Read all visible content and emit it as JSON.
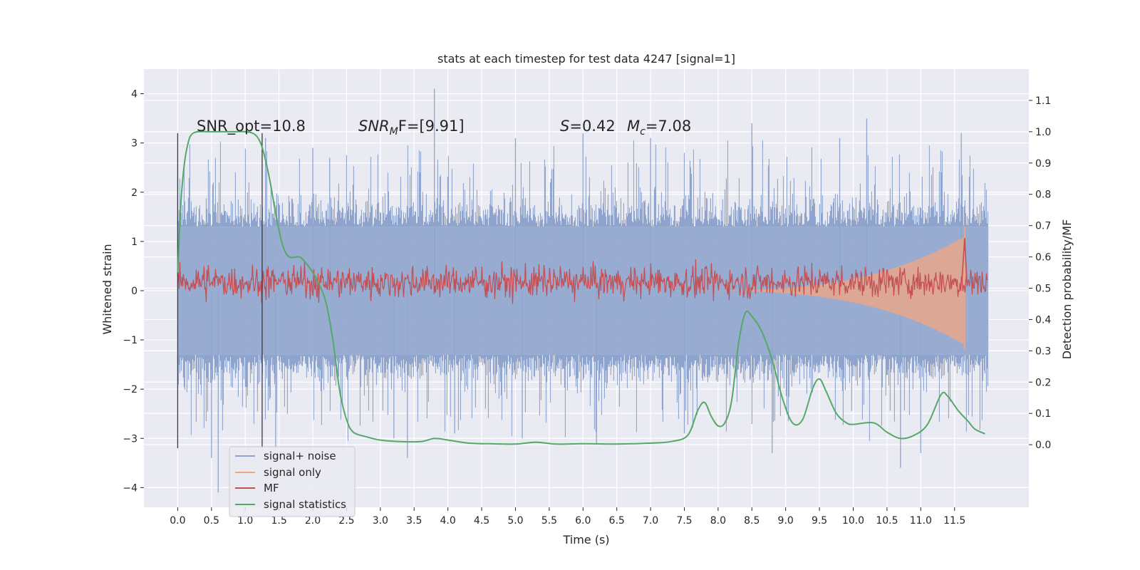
{
  "chart_data": {
    "type": "line",
    "title": "stats at each timestep for test data 4247 [signal=1]",
    "xlabel": "Time (s)",
    "ylabel": "Whitened strain",
    "y2label": "Detection probability/MF",
    "xlim": [
      -0.5,
      12.6
    ],
    "ylim": [
      -4.4,
      4.5
    ],
    "y2lim": [
      -0.2,
      1.2
    ],
    "x_ticks": [
      0.0,
      0.5,
      1.0,
      1.5,
      2.0,
      2.5,
      3.0,
      3.5,
      4.0,
      4.5,
      5.0,
      5.5,
      6.0,
      6.5,
      7.0,
      7.5,
      8.0,
      8.5,
      9.0,
      9.5,
      10.0,
      10.5,
      11.0,
      11.5
    ],
    "x_tick_labels": [
      "0.0",
      "0.5",
      "1.0",
      "1.5",
      "2.0",
      "2.5",
      "3.0",
      "3.5",
      "4.0",
      "4.5",
      "5.0",
      "5.5",
      "6.0",
      "6.5",
      "7.0",
      "7.5",
      "8.0",
      "8.5",
      "9.0",
      "9.5",
      "10.0",
      "10.5",
      "11.0",
      "11.5"
    ],
    "y_ticks": [
      4,
      3,
      2,
      1,
      0,
      -1,
      -2,
      -3,
      -4
    ],
    "y_tick_labels": [
      "4",
      "3",
      "2",
      "1",
      "0",
      "−1",
      "−2",
      "−3",
      "−4"
    ],
    "y2_ticks": [
      1.1,
      1.0,
      0.9,
      0.8,
      0.7,
      0.6,
      0.5,
      0.4,
      0.3,
      0.2,
      0.1,
      0.0
    ],
    "y2_tick_labels": [
      "1.1",
      "1.0",
      "0.9",
      "0.8",
      "0.7",
      "0.6",
      "0.5",
      "0.4",
      "0.3",
      "0.2",
      "0.1",
      "0.0"
    ],
    "grid": true,
    "legend_position": "lower-left",
    "annotations": {
      "snr_opt": "SNR_opt=10.8",
      "snr_mf_sym": "SNR",
      "snr_mf_sub": "M",
      "snr_mf_rest": "F=[9.91]",
      "s_sym": "S",
      "s_rest": "=0.42",
      "mc_sym": "M",
      "mc_sub": "c",
      "mc_rest": "=7.08"
    },
    "vlines": [
      {
        "x": 0.0,
        "y_range": [
          -3.2,
          3.2
        ]
      },
      {
        "x": 1.25,
        "y_range": [
          -3.2,
          3.2
        ]
      }
    ],
    "series": [
      {
        "name": "signal+ noise",
        "axis": "left",
        "color": "#8fa4cc",
        "x_range": [
          0.0,
          12.0
        ],
        "envelope_typical": 1.3,
        "peaks": [
          [
            0.0,
            2.3
          ],
          [
            0.5,
            -3.4
          ],
          [
            0.6,
            -4.1
          ],
          [
            1.3,
            3.1
          ],
          [
            1.45,
            -3.2
          ],
          [
            2.0,
            2.9
          ],
          [
            2.25,
            2.7
          ],
          [
            3.2,
            -3.0
          ],
          [
            3.4,
            -3.4
          ],
          [
            3.8,
            4.1
          ],
          [
            4.1,
            -2.9
          ],
          [
            5.0,
            3.1
          ],
          [
            5.1,
            -3.0
          ],
          [
            6.0,
            3.2
          ],
          [
            6.2,
            -3.1
          ],
          [
            7.0,
            3.1
          ],
          [
            7.5,
            -2.9
          ],
          [
            8.5,
            3.4
          ],
          [
            8.8,
            -3.3
          ],
          [
            9.8,
            3.1
          ],
          [
            10.2,
            3.5
          ],
          [
            10.7,
            -3.6
          ],
          [
            11.0,
            -3.3
          ],
          [
            11.6,
            3.2
          ]
        ]
      },
      {
        "name": "signal only",
        "axis": "left",
        "color": "#e8a68a",
        "x_range": [
          7.5,
          11.65
        ],
        "amp_end": 1.1
      },
      {
        "name": "MF",
        "axis": "right",
        "color": "#c44e52",
        "baseline": 0.52,
        "noise": 0.025,
        "peak": [
          11.65,
          0.66
        ]
      },
      {
        "name": "signal statistics",
        "axis": "right",
        "color": "#55a868",
        "x": [
          0.0,
          0.05,
          0.1,
          0.15,
          0.2,
          0.3,
          0.5,
          0.8,
          1.0,
          1.15,
          1.25,
          1.35,
          1.45,
          1.55,
          1.65,
          1.8,
          1.9,
          2.0,
          2.1,
          2.2,
          2.3,
          2.4,
          2.5,
          2.6,
          2.8,
          3.0,
          3.3,
          3.6,
          3.8,
          4.0,
          4.3,
          4.6,
          5.0,
          5.3,
          5.6,
          6.0,
          6.5,
          7.0,
          7.3,
          7.55,
          7.7,
          7.8,
          7.9,
          8.0,
          8.1,
          8.2,
          8.3,
          8.4,
          8.5,
          8.65,
          8.8,
          8.95,
          9.1,
          9.25,
          9.4,
          9.5,
          9.6,
          9.75,
          9.9,
          10.0,
          10.3,
          10.5,
          10.7,
          10.9,
          11.1,
          11.3,
          11.4,
          11.55,
          11.7,
          11.8,
          11.95
        ],
        "values": [
          0.55,
          0.78,
          0.9,
          0.96,
          0.99,
          1.0,
          1.0,
          1.0,
          1.0,
          0.99,
          0.95,
          0.86,
          0.74,
          0.64,
          0.6,
          0.6,
          0.58,
          0.55,
          0.51,
          0.45,
          0.33,
          0.17,
          0.08,
          0.04,
          0.025,
          0.015,
          0.01,
          0.01,
          0.02,
          0.015,
          0.005,
          0.003,
          0.002,
          0.008,
          0.002,
          0.003,
          0.002,
          0.005,
          0.01,
          0.03,
          0.11,
          0.135,
          0.09,
          0.06,
          0.07,
          0.14,
          0.32,
          0.42,
          0.41,
          0.36,
          0.27,
          0.15,
          0.07,
          0.08,
          0.18,
          0.21,
          0.17,
          0.1,
          0.07,
          0.065,
          0.07,
          0.04,
          0.02,
          0.03,
          0.065,
          0.16,
          0.155,
          0.11,
          0.075,
          0.05,
          0.035
        ]
      }
    ]
  }
}
